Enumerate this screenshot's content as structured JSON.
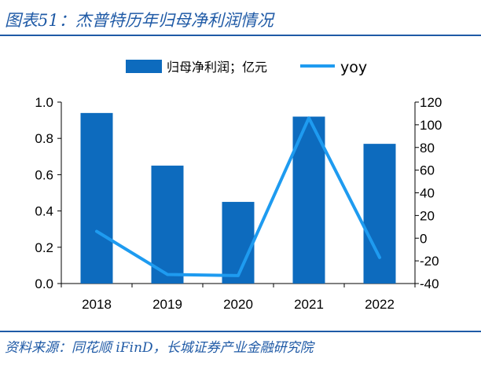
{
  "title": "图表51：杰普特历年归母净利润情况",
  "source": "资料来源：同花顺 iFinD，长城证券产业金融研究院",
  "colors": {
    "bar": "#0d6bbe",
    "line": "#1e9bf0",
    "accent": "#1f5aa6"
  },
  "chart_data": {
    "type": "bar",
    "categories": [
      "2018",
      "2019",
      "2020",
      "2021",
      "2022"
    ],
    "series": [
      {
        "name": "归母净利润；亿元",
        "type": "bar",
        "axis": "left",
        "values": [
          0.94,
          0.65,
          0.45,
          0.92,
          0.77
        ]
      },
      {
        "name": "yoy",
        "type": "line",
        "axis": "right",
        "values": [
          6,
          -32,
          -33,
          106,
          -17
        ]
      }
    ],
    "ylim": [
      0,
      1.0
    ],
    "yticks": [
      "0.0",
      "0.2",
      "0.4",
      "0.6",
      "0.8",
      "1.0"
    ],
    "y2lim": [
      -40,
      120
    ],
    "y2ticks": [
      "-40",
      "-20",
      "0",
      "20",
      "40",
      "60",
      "80",
      "100",
      "120"
    ],
    "legend": [
      "归母净利润；亿元",
      "yoy"
    ],
    "legend_position": "top-center",
    "grid": false
  }
}
